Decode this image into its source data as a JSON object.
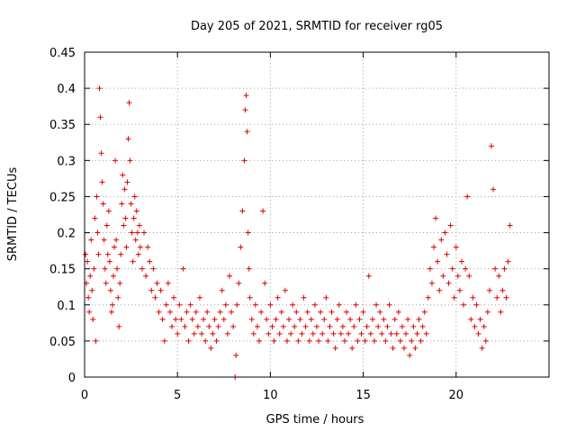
{
  "chart_data": {
    "type": "scatter",
    "title": "Day 205 of 2021, SRMTID for receiver rg05",
    "xlabel": "GPS time / hours",
    "ylabel": "SRMTID / TECUs",
    "xlim": [
      0,
      25
    ],
    "ylim": [
      0,
      0.45
    ],
    "xticks": [
      0,
      5,
      10,
      15,
      20
    ],
    "yticks": [
      0,
      0.05,
      0.1,
      0.15,
      0.2,
      0.25,
      0.3,
      0.35,
      0.4,
      0.45
    ],
    "xtick_labels": [
      "0",
      "5",
      "10",
      "15",
      "20"
    ],
    "ytick_labels": [
      "0",
      "0.05",
      "0.1",
      "0.15",
      "0.2",
      "0.25",
      "0.3",
      "0.35",
      "0.4",
      "0.45"
    ],
    "grid": true,
    "marker": "+",
    "color": "#e00000",
    "series": [
      {
        "name": "rg05",
        "points": [
          [
            0.05,
            0.17
          ],
          [
            0.1,
            0.13
          ],
          [
            0.15,
            0.16
          ],
          [
            0.2,
            0.11
          ],
          [
            0.25,
            0.09
          ],
          [
            0.3,
            0.14
          ],
          [
            0.35,
            0.19
          ],
          [
            0.4,
            0.12
          ],
          [
            0.45,
            0.08
          ],
          [
            0.5,
            0.15
          ],
          [
            0.55,
            0.22
          ],
          [
            0.6,
            0.05
          ],
          [
            0.65,
            0.25
          ],
          [
            0.7,
            0.2
          ],
          [
            0.75,
            0.17
          ],
          [
            0.8,
            0.4
          ],
          [
            0.85,
            0.36
          ],
          [
            0.9,
            0.31
          ],
          [
            0.95,
            0.27
          ],
          [
            1.0,
            0.24
          ],
          [
            1.05,
            0.19
          ],
          [
            1.1,
            0.15
          ],
          [
            1.15,
            0.13
          ],
          [
            1.2,
            0.21
          ],
          [
            1.25,
            0.17
          ],
          [
            1.3,
            0.23
          ],
          [
            1.35,
            0.16
          ],
          [
            1.4,
            0.12
          ],
          [
            1.45,
            0.09
          ],
          [
            1.5,
            0.1
          ],
          [
            1.55,
            0.14
          ],
          [
            1.6,
            0.18
          ],
          [
            1.65,
            0.3
          ],
          [
            1.7,
            0.19
          ],
          [
            1.75,
            0.15
          ],
          [
            1.8,
            0.11
          ],
          [
            1.85,
            0.07
          ],
          [
            1.9,
            0.13
          ],
          [
            1.95,
            0.17
          ],
          [
            2.0,
            0.24
          ],
          [
            2.05,
            0.28
          ],
          [
            2.1,
            0.21
          ],
          [
            2.15,
            0.26
          ],
          [
            2.2,
            0.22
          ],
          [
            2.25,
            0.18
          ],
          [
            2.3,
            0.27
          ],
          [
            2.35,
            0.33
          ],
          [
            2.4,
            0.38
          ],
          [
            2.45,
            0.3
          ],
          [
            2.5,
            0.24
          ],
          [
            2.55,
            0.2
          ],
          [
            2.6,
            0.16
          ],
          [
            2.65,
            0.22
          ],
          [
            2.7,
            0.25
          ],
          [
            2.75,
            0.19
          ],
          [
            2.8,
            0.23
          ],
          [
            2.85,
            0.2
          ],
          [
            2.9,
            0.17
          ],
          [
            2.95,
            0.21
          ],
          [
            3.0,
            0.18
          ],
          [
            3.1,
            0.15
          ],
          [
            3.2,
            0.2
          ],
          [
            3.3,
            0.14
          ],
          [
            3.4,
            0.18
          ],
          [
            3.5,
            0.16
          ],
          [
            3.6,
            0.12
          ],
          [
            3.7,
            0.15
          ],
          [
            3.8,
            0.11
          ],
          [
            3.9,
            0.13
          ],
          [
            4.0,
            0.09
          ],
          [
            4.1,
            0.12
          ],
          [
            4.2,
            0.08
          ],
          [
            4.3,
            0.05
          ],
          [
            4.4,
            0.1
          ],
          [
            4.5,
            0.13
          ],
          [
            4.6,
            0.09
          ],
          [
            4.7,
            0.07
          ],
          [
            4.8,
            0.11
          ],
          [
            4.9,
            0.08
          ],
          [
            5.0,
            0.06
          ],
          [
            5.1,
            0.1
          ],
          [
            5.2,
            0.08
          ],
          [
            5.3,
            0.15
          ],
          [
            5.4,
            0.07
          ],
          [
            5.5,
            0.09
          ],
          [
            5.6,
            0.05
          ],
          [
            5.7,
            0.1
          ],
          [
            5.8,
            0.08
          ],
          [
            5.9,
            0.06
          ],
          [
            6.0,
            0.09
          ],
          [
            6.1,
            0.07
          ],
          [
            6.2,
            0.11
          ],
          [
            6.3,
            0.06
          ],
          [
            6.4,
            0.08
          ],
          [
            6.5,
            0.05
          ],
          [
            6.6,
            0.09
          ],
          [
            6.7,
            0.07
          ],
          [
            6.8,
            0.04
          ],
          [
            6.9,
            0.06
          ],
          [
            7.0,
            0.08
          ],
          [
            7.1,
            0.05
          ],
          [
            7.2,
            0.07
          ],
          [
            7.3,
            0.09
          ],
          [
            7.4,
            0.12
          ],
          [
            7.5,
            0.08
          ],
          [
            7.6,
            0.1
          ],
          [
            7.7,
            0.06
          ],
          [
            7.8,
            0.14
          ],
          [
            7.9,
            0.09
          ],
          [
            8.0,
            0.07
          ],
          [
            8.1,
            0.0
          ],
          [
            8.15,
            0.03
          ],
          [
            8.2,
            0.1
          ],
          [
            8.3,
            0.13
          ],
          [
            8.4,
            0.18
          ],
          [
            8.5,
            0.23
          ],
          [
            8.6,
            0.3
          ],
          [
            8.65,
            0.37
          ],
          [
            8.7,
            0.39
          ],
          [
            8.75,
            0.34
          ],
          [
            8.8,
            0.2
          ],
          [
            8.85,
            0.15
          ],
          [
            8.9,
            0.11
          ],
          [
            9.0,
            0.08
          ],
          [
            9.1,
            0.06
          ],
          [
            9.2,
            0.1
          ],
          [
            9.3,
            0.07
          ],
          [
            9.4,
            0.05
          ],
          [
            9.5,
            0.09
          ],
          [
            9.6,
            0.23
          ],
          [
            9.7,
            0.13
          ],
          [
            9.8,
            0.08
          ],
          [
            9.9,
            0.06
          ],
          [
            10.0,
            0.1
          ],
          [
            10.1,
            0.07
          ],
          [
            10.2,
            0.05
          ],
          [
            10.3,
            0.08
          ],
          [
            10.4,
            0.11
          ],
          [
            10.5,
            0.06
          ],
          [
            10.6,
            0.09
          ],
          [
            10.7,
            0.07
          ],
          [
            10.8,
            0.12
          ],
          [
            10.9,
            0.05
          ],
          [
            11.0,
            0.08
          ],
          [
            11.1,
            0.06
          ],
          [
            11.2,
            0.1
          ],
          [
            11.3,
            0.07
          ],
          [
            11.4,
            0.09
          ],
          [
            11.5,
            0.05
          ],
          [
            11.6,
            0.08
          ],
          [
            11.7,
            0.06
          ],
          [
            11.8,
            0.11
          ],
          [
            11.9,
            0.07
          ],
          [
            12.0,
            0.09
          ],
          [
            12.1,
            0.05
          ],
          [
            12.2,
            0.08
          ],
          [
            12.3,
            0.06
          ],
          [
            12.4,
            0.1
          ],
          [
            12.5,
            0.07
          ],
          [
            12.6,
            0.05
          ],
          [
            12.7,
            0.09
          ],
          [
            12.8,
            0.06
          ],
          [
            12.9,
            0.08
          ],
          [
            13.0,
            0.11
          ],
          [
            13.1,
            0.05
          ],
          [
            13.2,
            0.07
          ],
          [
            13.3,
            0.09
          ],
          [
            13.4,
            0.06
          ],
          [
            13.5,
            0.04
          ],
          [
            13.6,
            0.08
          ],
          [
            13.7,
            0.1
          ],
          [
            13.8,
            0.06
          ],
          [
            13.9,
            0.07
          ],
          [
            14.0,
            0.05
          ],
          [
            14.1,
            0.09
          ],
          [
            14.2,
            0.06
          ],
          [
            14.3,
            0.08
          ],
          [
            14.4,
            0.04
          ],
          [
            14.5,
            0.07
          ],
          [
            14.6,
            0.1
          ],
          [
            14.7,
            0.05
          ],
          [
            14.8,
            0.08
          ],
          [
            14.9,
            0.06
          ],
          [
            15.0,
            0.09
          ],
          [
            15.1,
            0.05
          ],
          [
            15.2,
            0.07
          ],
          [
            15.3,
            0.14
          ],
          [
            15.4,
            0.06
          ],
          [
            15.5,
            0.08
          ],
          [
            15.6,
            0.05
          ],
          [
            15.7,
            0.1
          ],
          [
            15.8,
            0.07
          ],
          [
            15.9,
            0.09
          ],
          [
            16.0,
            0.06
          ],
          [
            16.1,
            0.08
          ],
          [
            16.2,
            0.05
          ],
          [
            16.3,
            0.07
          ],
          [
            16.4,
            0.1
          ],
          [
            16.5,
            0.06
          ],
          [
            16.6,
            0.04
          ],
          [
            16.7,
            0.08
          ],
          [
            16.8,
            0.06
          ],
          [
            16.9,
            0.09
          ],
          [
            17.0,
            0.05
          ],
          [
            17.1,
            0.07
          ],
          [
            17.2,
            0.04
          ],
          [
            17.3,
            0.06
          ],
          [
            17.4,
            0.08
          ],
          [
            17.5,
            0.03
          ],
          [
            17.6,
            0.05
          ],
          [
            17.7,
            0.07
          ],
          [
            17.8,
            0.04
          ],
          [
            17.9,
            0.06
          ],
          [
            18.0,
            0.08
          ],
          [
            18.1,
            0.05
          ],
          [
            18.2,
            0.07
          ],
          [
            18.3,
            0.09
          ],
          [
            18.4,
            0.06
          ],
          [
            18.5,
            0.11
          ],
          [
            18.6,
            0.15
          ],
          [
            18.7,
            0.13
          ],
          [
            18.8,
            0.18
          ],
          [
            18.9,
            0.22
          ],
          [
            19.0,
            0.16
          ],
          [
            19.1,
            0.12
          ],
          [
            19.2,
            0.19
          ],
          [
            19.3,
            0.14
          ],
          [
            19.4,
            0.2
          ],
          [
            19.5,
            0.17
          ],
          [
            19.6,
            0.13
          ],
          [
            19.7,
            0.21
          ],
          [
            19.8,
            0.15
          ],
          [
            19.9,
            0.11
          ],
          [
            20.0,
            0.18
          ],
          [
            20.1,
            0.14
          ],
          [
            20.2,
            0.12
          ],
          [
            20.3,
            0.16
          ],
          [
            20.4,
            0.1
          ],
          [
            20.5,
            0.15
          ],
          [
            20.6,
            0.25
          ],
          [
            20.7,
            0.14
          ],
          [
            20.8,
            0.08
          ],
          [
            20.9,
            0.11
          ],
          [
            21.0,
            0.07
          ],
          [
            21.1,
            0.1
          ],
          [
            21.2,
            0.06
          ],
          [
            21.3,
            0.08
          ],
          [
            21.4,
            0.04
          ],
          [
            21.5,
            0.07
          ],
          [
            21.6,
            0.05
          ],
          [
            21.7,
            0.09
          ],
          [
            21.8,
            0.12
          ],
          [
            21.9,
            0.32
          ],
          [
            22.0,
            0.26
          ],
          [
            22.1,
            0.15
          ],
          [
            22.2,
            0.11
          ],
          [
            22.3,
            0.14
          ],
          [
            22.4,
            0.09
          ],
          [
            22.5,
            0.12
          ],
          [
            22.6,
            0.15
          ],
          [
            22.7,
            0.11
          ],
          [
            22.8,
            0.16
          ],
          [
            22.9,
            0.21
          ]
        ]
      }
    ]
  }
}
